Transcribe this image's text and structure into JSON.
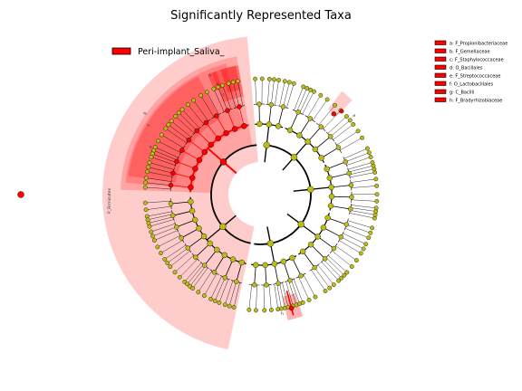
{
  "chart_data": {
    "type": "cladogram",
    "title": "Significantly Represented Taxa",
    "legend_group": "Peri-implant_Saliva_",
    "group_color": "#ff0000",
    "background_node_color": "#bcbc17",
    "biomarkers": [
      "a: F_Propionibacteriaceae",
      "b: F_Gemellaceae",
      "c: F_Staphylococcaceae",
      "d: O_Bacillales",
      "e: F_Streptococcaceae",
      "f: O_Lactobacillales",
      "g: C_Bacilli",
      "h: F_Bradyrhizobiaceae"
    ],
    "clade_labels": {
      "phylum": "P_Firmicutes",
      "class": "g",
      "order_1": "f",
      "order_2": "d",
      "family_b": "b",
      "family_c": "c",
      "family_e": "e",
      "family_a": "a",
      "family_h": "h"
    }
  }
}
